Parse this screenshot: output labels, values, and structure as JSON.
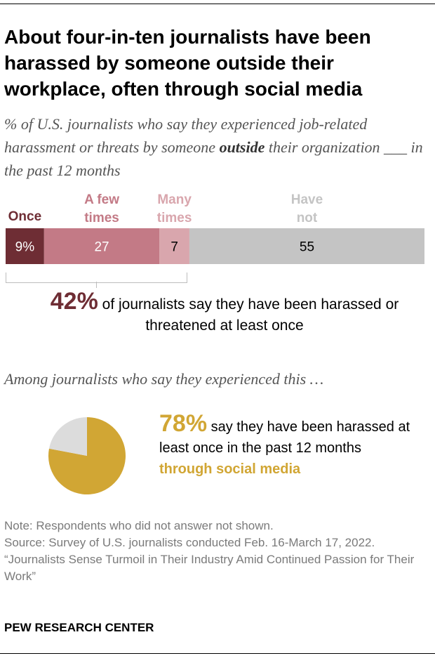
{
  "title": "About four-in-ten journalists have been harassed by someone outside their workplace, often through social media",
  "subtitle": {
    "pre": "% of U.S. journalists who say they experienced job-related harassment or threats by someone",
    "emph": "outside",
    "post": "their organization ___ in the past 12 months"
  },
  "chart_data": [
    {
      "type": "bar",
      "orientation": "horizontal-stacked",
      "categories": [
        "Once",
        "A few times",
        "Many times",
        "Have not"
      ],
      "values": [
        9,
        27,
        7,
        55
      ],
      "labels": [
        "9%",
        "27",
        "7",
        "55"
      ],
      "colors": [
        "#6e2d34",
        "#c37a86",
        "#d9a6ad",
        "#c4c4c4"
      ],
      "label_colors": [
        "#ffffff",
        "#ffffff",
        "#000000",
        "#000000"
      ],
      "category_label_colors": [
        "#6e2d34",
        "#c37a86",
        "#d9a6ad",
        "#c4c4c4"
      ]
    },
    {
      "type": "pie",
      "categories": [
        "Through social media",
        "Other"
      ],
      "values": [
        78,
        22
      ],
      "colors": [
        "#d1a634",
        "#dcdcdc"
      ]
    }
  ],
  "callout": {
    "value": "42%",
    "text": "of journalists say they have been harassed or threatened at least once"
  },
  "among": "Among journalists who say they experienced this …",
  "pie_text": {
    "value": "78%",
    "text": "say they have been harassed at least once in the past 12 months",
    "highlight": "through social media"
  },
  "notes": {
    "note": "Note: Respondents who did not answer not shown.",
    "source": "Source: Survey of U.S. journalists conducted Feb. 16-March 17, 2022.",
    "report": "“Journalists Sense Turmoil in Their Industry Amid Continued Passion for Their Work”"
  },
  "brand": "PEW RESEARCH CENTER"
}
